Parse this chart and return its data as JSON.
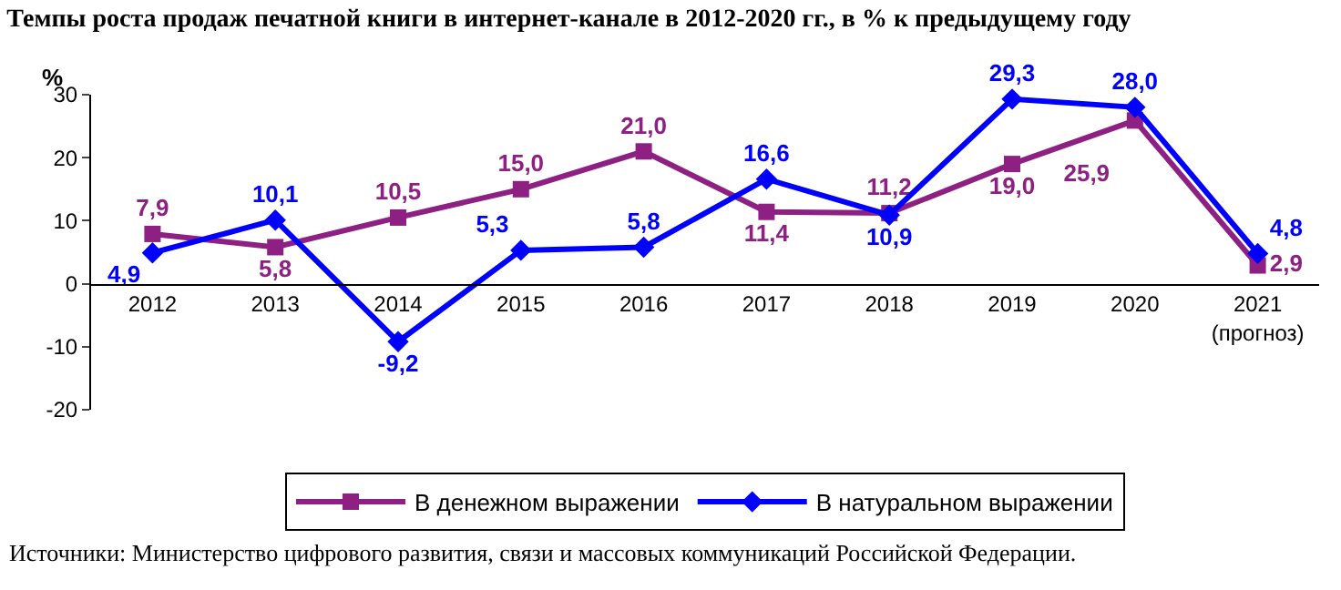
{
  "chart_data": {
    "type": "line",
    "title": "Темпы роста продаж печатной книги в интернет-канале в 2012-2020 гг., в % к предыдущему году",
    "ylabel": "%",
    "categories": [
      "2012",
      "2013",
      "2014",
      "2015",
      "2016",
      "2017",
      "2018",
      "2019",
      "2020",
      "2021\n(прогноз)"
    ],
    "series": [
      {
        "name": "В денежном выражении",
        "color": "#8e1f83",
        "marker": "square",
        "values": [
          7.9,
          5.8,
          10.5,
          15.0,
          21.0,
          11.4,
          11.2,
          19.0,
          25.9,
          2.9
        ],
        "value_labels": [
          "7,9",
          "5,8",
          "10,5",
          "15,0",
          "21,0",
          "11,4",
          "11,2",
          "19,0",
          "25,9",
          "2,9"
        ]
      },
      {
        "name": "В натуральном выражении",
        "color": "#0000ff",
        "marker": "diamond",
        "values": [
          4.9,
          10.1,
          -9.2,
          5.3,
          5.8,
          16.6,
          10.9,
          29.3,
          28.0,
          4.8
        ],
        "value_labels": [
          "4,9",
          "10,1",
          "-9,2",
          "5,3",
          "5,8",
          "16,6",
          "10,9",
          "29,3",
          "28,0",
          "4,8"
        ]
      }
    ],
    "ylim": [
      -20,
      30
    ],
    "yticks": [
      -20,
      -10,
      0,
      10,
      20,
      30
    ],
    "grid": false,
    "legend": "bottom",
    "line_style": "solid",
    "annotations": [
      "Источники: Министерство цифрового развития, связи и массовых коммуникаций Российской Федерации."
    ]
  }
}
